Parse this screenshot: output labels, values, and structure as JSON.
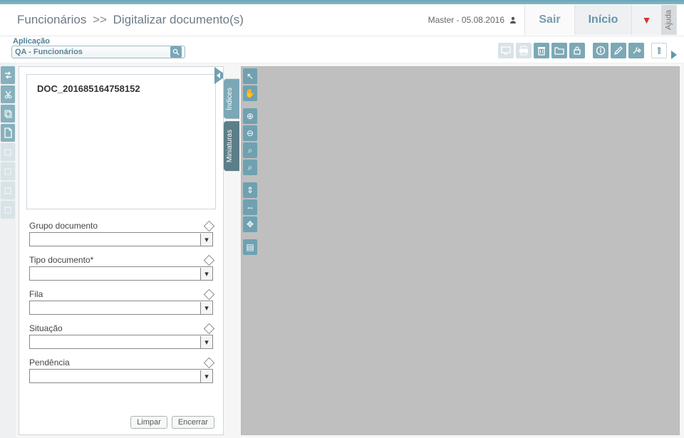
{
  "header": {
    "breadcrumb_1": "Funcionários",
    "breadcrumb_sep": ">>",
    "breadcrumb_2": "Digitalizar documento(s)",
    "master": "Master - 05.08.2016",
    "sair": "Sair",
    "inicio": "Início",
    "ajuda": "Ajuda"
  },
  "subbar": {
    "aplicacao_label": "Aplicação",
    "aplicacao_value": "QA - Funcionários"
  },
  "toolbar_icons": [
    {
      "name": "monitor-icon",
      "faded": true
    },
    {
      "name": "print-icon",
      "faded": true
    },
    {
      "name": "trash-icon",
      "faded": false
    },
    {
      "name": "folder-icon",
      "faded": false
    },
    {
      "name": "lock-icon",
      "faded": false
    },
    {
      "name": "info-icon",
      "faded": false,
      "gap": true
    },
    {
      "name": "edit-icon",
      "faded": false
    },
    {
      "name": "tools-icon",
      "faded": false
    }
  ],
  "left_tools": [
    {
      "name": "swap-icon",
      "disabled": false
    },
    {
      "name": "cut-icon",
      "disabled": false
    },
    {
      "name": "copy-icon",
      "disabled": false
    },
    {
      "name": "page-icon",
      "disabled": false
    },
    {
      "name": "tool5-icon",
      "disabled": true
    },
    {
      "name": "tool6-icon",
      "disabled": true
    },
    {
      "name": "tool7-icon",
      "disabled": true
    },
    {
      "name": "tool8-icon",
      "disabled": true
    }
  ],
  "doc": {
    "name": "DOC_201685164758152"
  },
  "form": {
    "fields": [
      {
        "label": "Grupo documento",
        "name": "grupo-documento"
      },
      {
        "label": "Tipo documento*",
        "name": "tipo-documento"
      },
      {
        "label": "Fila",
        "name": "fila"
      },
      {
        "label": "Situação",
        "name": "situacao"
      },
      {
        "label": "Pendência",
        "name": "pendencia"
      }
    ],
    "limpar": "Limpar",
    "encerrar": "Encerrar"
  },
  "midtabs": {
    "indices": "Índices",
    "miniaturas": "Miniaturas"
  },
  "viewer_tools": [
    {
      "name": "pointer-icon",
      "glyph": "↖"
    },
    {
      "name": "hand-icon",
      "glyph": "✋"
    },
    {
      "name": "zoom-in-icon",
      "glyph": "⊕",
      "gap": true
    },
    {
      "name": "zoom-out-icon",
      "glyph": "⊖"
    },
    {
      "name": "zoom-fit-icon",
      "glyph": "⌕"
    },
    {
      "name": "zoom-reset-icon",
      "glyph": "⌕"
    },
    {
      "name": "fit-vert-icon",
      "glyph": "⇕",
      "gap": true
    },
    {
      "name": "fit-horiz-icon",
      "glyph": "⇔"
    },
    {
      "name": "move-icon",
      "glyph": "✥"
    },
    {
      "name": "page-view-icon",
      "glyph": "▤",
      "gap": true
    }
  ]
}
